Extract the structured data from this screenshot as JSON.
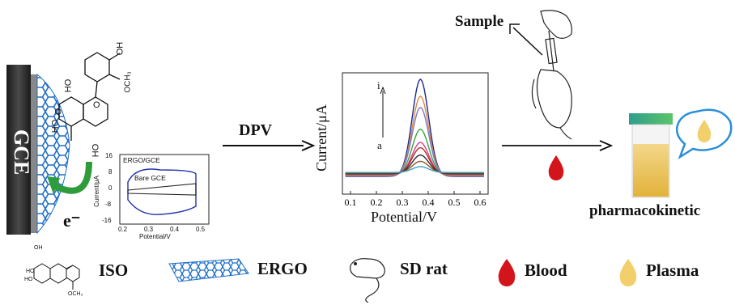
{
  "electrode": {
    "gce_label": "GCE",
    "electron_label": "e⁻",
    "oh_labels": [
      "OH",
      "HO",
      "O",
      "HO",
      "HO"
    ],
    "och3_label": "OCH₃",
    "ring_o_label": "O"
  },
  "cv_inset": {
    "legend_ergo": "ERGO/GCE",
    "legend_bare": "Bare GCE",
    "ylabel": "Current/μA",
    "xlabel": "Potential/V",
    "y_ticks": [
      "16",
      "8",
      "0",
      "-8",
      "-16"
    ],
    "x_ticks": [
      "0.2",
      "0.3",
      "0.4",
      "0.5"
    ]
  },
  "arrow_dpv": {
    "label": "DPV"
  },
  "chart_data": {
    "type": "line",
    "xlabel": "Potential/V",
    "ylabel": "Current/μA",
    "x_ticks": [
      "0.1",
      "0.2",
      "0.3",
      "0.4",
      "0.5",
      "0.6"
    ],
    "xlim": [
      0.1,
      0.6
    ],
    "peak_potential": 0.37,
    "annotation_top": "i",
    "annotation_bottom": "a",
    "series_count": 9,
    "series_colors": [
      "#1a2a8c",
      "#e08a3c",
      "#7a7ad0",
      "#3aa63a",
      "#d83a9a",
      "#c02424",
      "#2a2a2a",
      "#8a5a2a",
      "#3aa6c8"
    ],
    "peak_heights": [
      1.0,
      0.82,
      0.7,
      0.47,
      0.33,
      0.27,
      0.19,
      0.12,
      0.06
    ]
  },
  "sample": {
    "label": "Sample"
  },
  "right": {
    "pharmaco_label": "pharmacokinetic"
  },
  "legend": {
    "iso": "ISO",
    "ergo": "ERGO",
    "rat": "SD rat",
    "blood": "Blood",
    "plasma": "Plasma",
    "iso_oh": [
      "OH",
      "HO",
      "HO"
    ],
    "iso_och3": "OCH₃"
  },
  "colors": {
    "blood": "#d3141b",
    "plasma": "#f3cf6c",
    "graphene": "#1f6fc8",
    "accent_green": "#2f9c3b",
    "tube_cap": "#3aa87a"
  }
}
